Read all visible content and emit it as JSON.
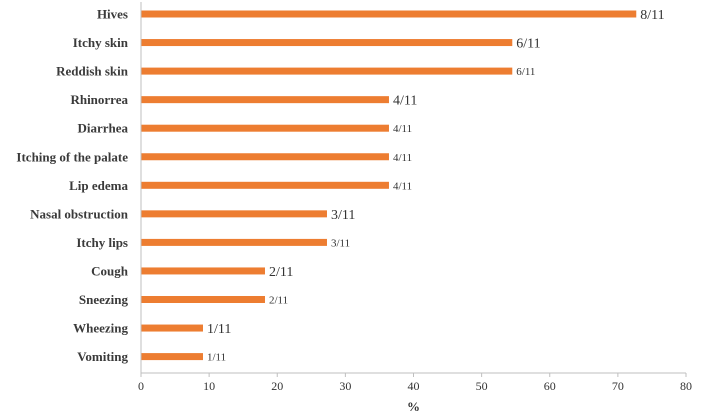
{
  "chart_data": {
    "type": "bar",
    "orientation": "horizontal",
    "title": "",
    "xlabel": "%",
    "ylabel": "",
    "xlim": [
      0,
      80
    ],
    "xticks": [
      0,
      10,
      20,
      30,
      40,
      50,
      60,
      70,
      80
    ],
    "grid": false,
    "bar_color": "#ED7D31",
    "categories": [
      "Hives",
      "Itchy skin",
      "Reddish skin",
      "Rhinorrea",
      "Diarrhea",
      "Itching of the palate",
      "Lip edema",
      "Nasal obstruction",
      "Itchy lips",
      "Cough",
      "Sneezing",
      "Wheezing",
      "Vomiting"
    ],
    "values": [
      72.7,
      54.5,
      54.5,
      36.4,
      36.4,
      36.4,
      36.4,
      27.3,
      27.3,
      18.2,
      18.2,
      9.1,
      9.1
    ],
    "data_labels": [
      "8/11",
      "6/11",
      "6/11",
      "4/11",
      "4/11",
      "4/11",
      "4/11",
      "3/11",
      "3/11",
      "2/11",
      "2/11",
      "1/11",
      "1/11"
    ],
    "data_label_sizes": [
      "large",
      "large",
      "small",
      "large",
      "small",
      "small",
      "small",
      "large",
      "small",
      "large",
      "small",
      "large",
      "small"
    ]
  }
}
